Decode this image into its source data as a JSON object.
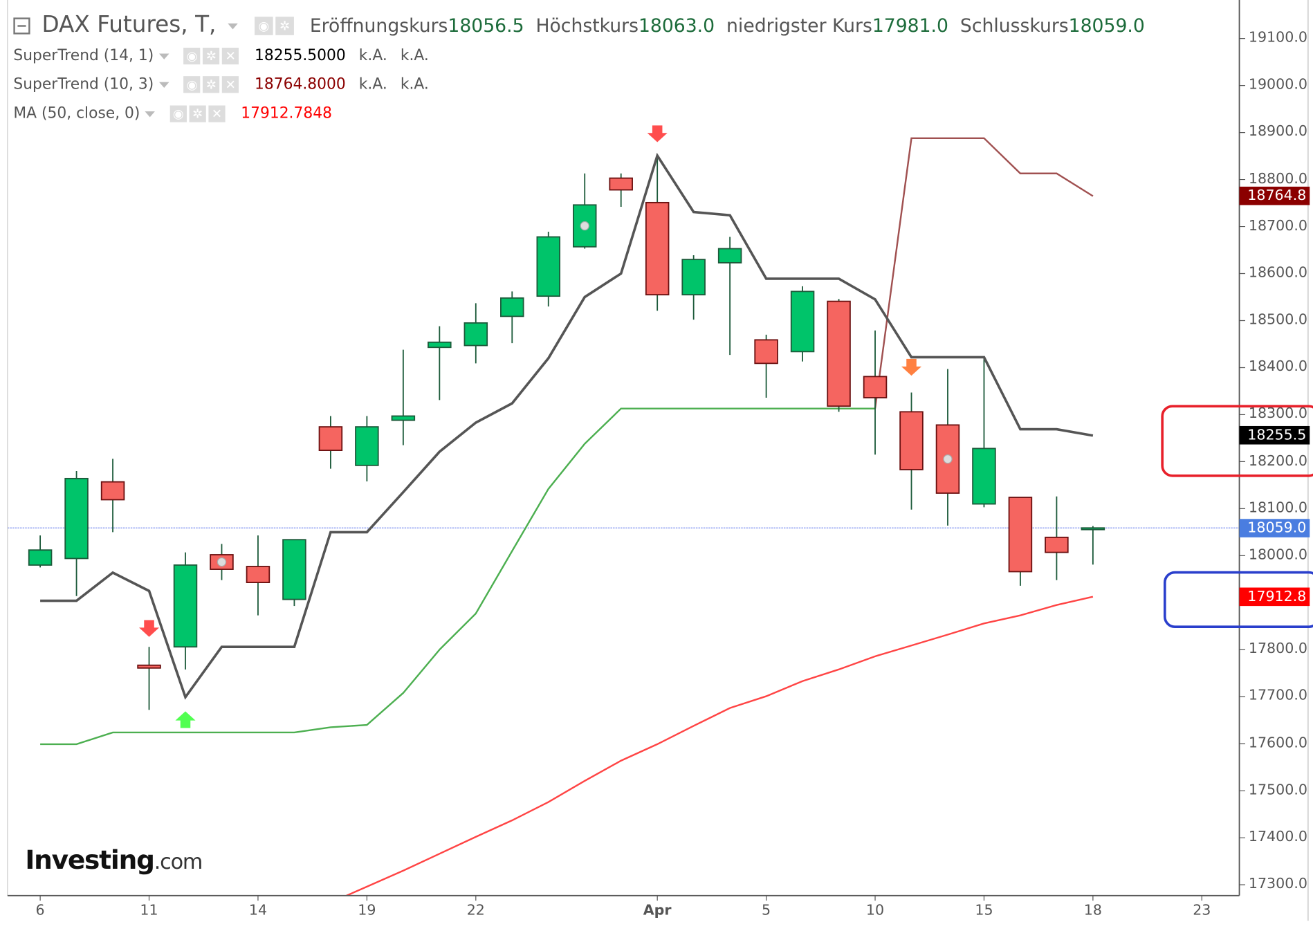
{
  "header": {
    "symbol": "DAX Futures, T,",
    "open_label": "Eröffnungskurs",
    "open": "18056.5",
    "high_label": "Höchstkurs",
    "high": "18063.0",
    "low_label": "niedrigster Kurs",
    "low": "17981.0",
    "close_label": "Schlusskurs",
    "close": "18059.0"
  },
  "indicators": [
    {
      "name": "SuperTrend (14, 1)",
      "value": "18255.5000",
      "v2": "k.A.",
      "v3": "k.A.",
      "color": "#000000"
    },
    {
      "name": "SuperTrend (10, 3)",
      "value": "18764.8000",
      "v2": "k.A.",
      "v3": "k.A.",
      "color": "#8b0000"
    },
    {
      "name": "MA (50, close, 0)",
      "value": "17912.7848",
      "color": "#ff0000"
    }
  ],
  "logo": {
    "main": "Investing",
    "suffix": ".com"
  },
  "chart_data": {
    "type": "candlestick",
    "ylim": [
      17270,
      19180
    ],
    "yticks": [
      "19100.0",
      "19000.0",
      "18900.0",
      "18800.0",
      "18700.0",
      "18600.0",
      "18500.0",
      "18400.0",
      "18300.0",
      "18200.0",
      "18100.0",
      "18000.0",
      "17800.0",
      "17700.0",
      "17600.0",
      "17500.0",
      "17400.0",
      "17300.0"
    ],
    "xticks": [
      {
        "label": "6",
        "index": 0
      },
      {
        "label": "11",
        "index": 3
      },
      {
        "label": "14",
        "index": 6
      },
      {
        "label": "19",
        "index": 9
      },
      {
        "label": "22",
        "index": 12
      },
      {
        "label": "Apr",
        "index": 17,
        "bold": true
      },
      {
        "label": "5",
        "index": 20
      },
      {
        "label": "10",
        "index": 23
      },
      {
        "label": "15",
        "index": 26
      },
      {
        "label": "18",
        "index": 29
      },
      {
        "label": "23",
        "index": 32
      }
    ],
    "candles": [
      [
        17980,
        18043,
        17975,
        18012
      ],
      [
        17994,
        18180,
        17914,
        18164
      ],
      [
        18157,
        18206,
        18050,
        18119
      ],
      [
        17767,
        17806,
        17672,
        17761
      ],
      [
        17806,
        18007,
        17758,
        17980
      ],
      [
        18002,
        18025,
        17948,
        17971
      ],
      [
        17977,
        18043,
        17873,
        17943
      ],
      [
        17907,
        18034,
        17893,
        18034
      ],
      [
        18274,
        18297,
        18185,
        18224
      ],
      [
        18192,
        18297,
        18158,
        18274
      ],
      [
        18288,
        18438,
        18235,
        18297
      ],
      [
        18443,
        18488,
        18331,
        18454
      ],
      [
        18447,
        18537,
        18409,
        18495
      ],
      [
        18509,
        18562,
        18452,
        18548
      ],
      [
        18552,
        18689,
        18530,
        18678
      ],
      [
        18657,
        18813,
        18653,
        18746
      ],
      [
        18803,
        18813,
        18742,
        18778
      ],
      [
        18751,
        18851,
        18521,
        18555
      ],
      [
        18555,
        18639,
        18502,
        18630
      ],
      [
        18623,
        18678,
        18427,
        18653
      ],
      [
        18459,
        18470,
        18336,
        18409
      ],
      [
        18434,
        18573,
        18413,
        18562
      ],
      [
        18541,
        18546,
        18306,
        18318
      ],
      [
        18381,
        18479,
        18215,
        18336
      ],
      [
        18306,
        18347,
        18098,
        18183
      ],
      [
        18278,
        18397,
        18064,
        18133
      ],
      [
        18110,
        18422,
        18103,
        18228
      ],
      [
        18124,
        18124,
        17936,
        17966
      ],
      [
        18039,
        18126,
        17948,
        18007
      ],
      [
        18056.5,
        18063,
        17981,
        18059
      ]
    ],
    "candle_format": [
      "open",
      "high",
      "low",
      "close"
    ],
    "series": [
      {
        "name": "SuperTrend (14, 1)",
        "color": "#555555",
        "values": [
          17904,
          17904,
          17964,
          17925,
          17699,
          17806,
          17806,
          17806,
          18050,
          18050,
          18135,
          18221,
          18283,
          18324,
          18420,
          18550,
          18600,
          18851,
          18731,
          18724,
          18589,
          18589,
          18589,
          18545,
          18422,
          18422,
          18422,
          18269,
          18269,
          18255.5
        ]
      },
      {
        "name": "SuperTrend (10, 3)",
        "color_up": "#4caf50",
        "color_down": "#a05050",
        "up_values": [
          17599,
          17599,
          17624,
          17624,
          17624,
          17624,
          17624,
          17624,
          17635,
          17640,
          17708,
          17800,
          17877,
          18010,
          18142,
          18238,
          18313,
          18313,
          18313,
          18313,
          18313,
          18313,
          18313,
          18313,
          null,
          null,
          null,
          null,
          null,
          null
        ],
        "down_values": [
          null,
          null,
          null,
          null,
          null,
          null,
          null,
          null,
          null,
          null,
          null,
          null,
          null,
          null,
          null,
          null,
          null,
          null,
          null,
          null,
          null,
          null,
          null,
          18313,
          18888,
          18888,
          18888,
          18813,
          18813,
          18764.8
        ]
      },
      {
        "name": "MA (50, close, 0)",
        "color": "#ff4444",
        "values": [
          null,
          null,
          null,
          null,
          null,
          null,
          null,
          null,
          17262,
          17296,
          17330,
          17366,
          17402,
          17437,
          17476,
          17521,
          17564,
          17599,
          17638,
          17676,
          17701,
          17733,
          17758,
          17786,
          17809,
          17832,
          17856,
          17873,
          17895,
          17912.8
        ]
      }
    ],
    "signals": [
      {
        "index": 3,
        "type": "down",
        "color": "#ff4d4d"
      },
      {
        "index": 4,
        "type": "up",
        "color": "#33ff33"
      },
      {
        "index": 17,
        "type": "down",
        "color": "#ff4d4d"
      },
      {
        "index": 24,
        "type": "down",
        "color": "#ff8040"
      }
    ],
    "dots": [
      5,
      15,
      25
    ],
    "last_price_line": 18059.0,
    "price_labels": [
      {
        "text": "18764.8",
        "value": 18764.8,
        "color": "#8b0000"
      },
      {
        "text": "18255.5",
        "value": 18255.5,
        "color": "#000000"
      },
      {
        "text": "18059.0",
        "value": 18059.0,
        "color": "#4a7de0"
      },
      {
        "text": "17912.8",
        "value": 17912.8,
        "color": "#ff0000"
      }
    ],
    "highlights": [
      {
        "around": 18255.5,
        "color": "#e8202a"
      },
      {
        "around": 17912.8,
        "color": "#2a3fcc"
      }
    ],
    "colors": {
      "up": "#00c46a",
      "down": "#f56560",
      "wick": "#1c5a3a",
      "grid_axis": "#555555"
    }
  }
}
